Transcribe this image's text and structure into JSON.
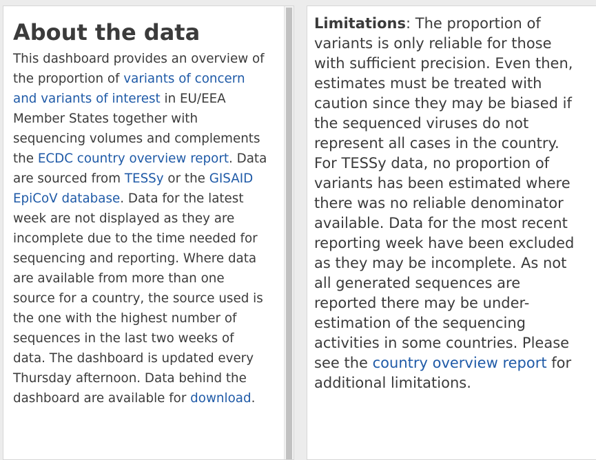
{
  "about": {
    "title": "About the data",
    "p1": "This dashboard provides an overview of the proportion of ",
    "link_variants": "variants of concern and variants of interest",
    "p2": " in EU/EEA Member States together with sequencing volumes and complements the ",
    "link_country_report": "ECDC country overview report",
    "p3": ". Data are sourced from ",
    "link_tessy": "TESSy",
    "p4": " or the ",
    "link_gisaid": "GISAID EpiCoV database",
    "p5": ". Data for the latest week are not displayed as they are incomplete due to the time needed for sequencing and reporting. Where data are available from more than one source for a country, the source used is the one with the highest number of sequences in the last two weeks of data. The dashboard is updated every Thursday afternoon. Data behind the dashboard are available for ",
    "link_download": "download",
    "p6": "."
  },
  "limitations": {
    "label": "Limitations",
    "text1": ": The proportion of variants is only reliable for those with sufficient precision. Even then, estimates must be treated with caution since they may be biased if the sequenced viruses do not represent all cases in the country. For TESSy data, no proportion of variants has been estimated where there was no reliable denominator available. Data for the most recent reporting week have been excluded as they may be incomplete. As not all generated sequences are reported there may be under-estimation of the sequencing activities in some countries.  Please see the ",
    "link_country_report": "country overview report",
    "text2": " for additional limitations."
  },
  "colors": {
    "text": "#3b3b3b",
    "link": "#1f5aa7",
    "background": "#ececec",
    "panel": "#ffffff"
  }
}
